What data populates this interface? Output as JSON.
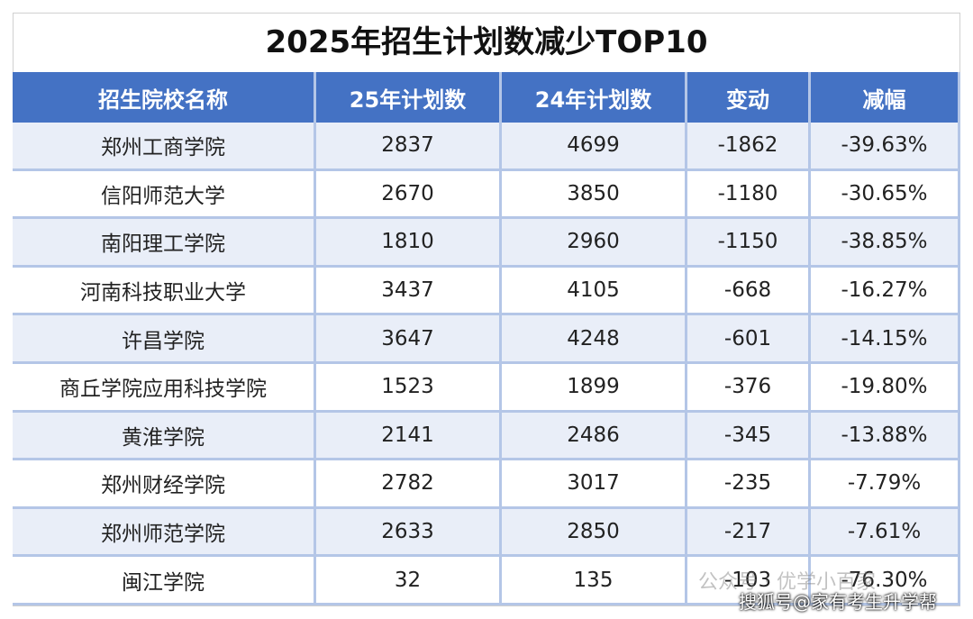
{
  "header": {
    "title": "2025年招生计划数减少TOP10"
  },
  "table": {
    "columns": [
      "招生院校名称",
      "25年计划数",
      "24年计划数",
      "变动",
      "减幅"
    ],
    "rows": [
      [
        "郑州工商学院",
        "2837",
        "4699",
        "-1862",
        "-39.63%"
      ],
      [
        "信阳师范大学",
        "2670",
        "3850",
        "-1180",
        "-30.65%"
      ],
      [
        "南阳理工学院",
        "1810",
        "2960",
        "-1150",
        "-38.85%"
      ],
      [
        "河南科技职业大学",
        "3437",
        "4105",
        "-668",
        "-16.27%"
      ],
      [
        "许昌学院",
        "3647",
        "4248",
        "-601",
        "-14.15%"
      ],
      [
        "商丘学院应用科技学院",
        "1523",
        "1899",
        "-376",
        "-19.80%"
      ],
      [
        "黄淮学院",
        "2141",
        "2486",
        "-345",
        "-13.88%"
      ],
      [
        "郑州财经学院",
        "2782",
        "3017",
        "-235",
        "-7.79%"
      ],
      [
        "郑州师范学院",
        "2633",
        "2850",
        "-217",
        "-7.61%"
      ],
      [
        "闽江学院",
        "32",
        "135",
        "-103",
        "-76.30%"
      ]
    ]
  },
  "watermarks": [
    "公众号 · 优学小百家",
    "搜狐号@家有考生升学帮"
  ]
}
